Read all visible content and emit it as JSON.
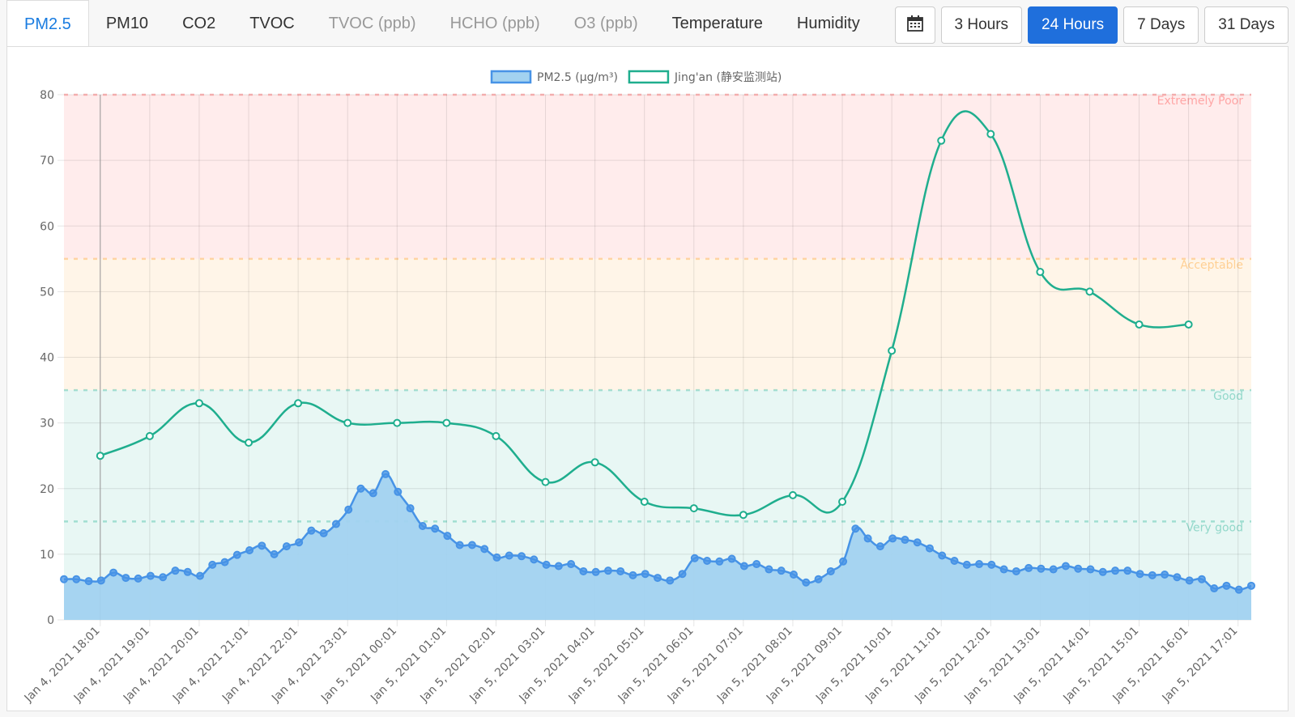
{
  "tabs": [
    {
      "label": "PM2.5",
      "state": "active"
    },
    {
      "label": "PM10",
      "state": "normal"
    },
    {
      "label": "CO2",
      "state": "normal"
    },
    {
      "label": "TVOC",
      "state": "normal"
    },
    {
      "label": "TVOC (ppb)",
      "state": "disabled"
    },
    {
      "label": "HCHO (ppb)",
      "state": "disabled"
    },
    {
      "label": "O3 (ppb)",
      "state": "disabled"
    },
    {
      "label": "Temperature",
      "state": "normal"
    },
    {
      "label": "Humidity",
      "state": "normal"
    }
  ],
  "ranges": [
    {
      "label": "3 Hours",
      "state": "normal"
    },
    {
      "label": "24 Hours",
      "state": "active"
    },
    {
      "label": "7 Days",
      "state": "normal"
    },
    {
      "label": "31 Days",
      "state": "normal"
    }
  ],
  "chart_data": {
    "type": "line",
    "xlim": [
      "Jan 4, 2021 17:17",
      "Jan 5, 2021 17:17"
    ],
    "xticks": [
      "Jan 4, 2021 18:01",
      "Jan 4, 2021 19:01",
      "Jan 4, 2021 20:01",
      "Jan 4, 2021 21:01",
      "Jan 4, 2021 22:01",
      "Jan 4, 2021 23:01",
      "Jan 5, 2021 00:01",
      "Jan 5, 2021 01:01",
      "Jan 5, 2021 02:01",
      "Jan 5, 2021 03:01",
      "Jan 5, 2021 04:01",
      "Jan 5, 2021 05:01",
      "Jan 5, 2021 06:01",
      "Jan 5, 2021 07:01",
      "Jan 5, 2021 08:01",
      "Jan 5, 2021 09:01",
      "Jan 5, 2021 10:01",
      "Jan 5, 2021 11:01",
      "Jan 5, 2021 12:01",
      "Jan 5, 2021 13:01",
      "Jan 5, 2021 14:01",
      "Jan 5, 2021 15:01",
      "Jan 5, 2021 16:01",
      "Jan 5, 2021 17:01"
    ],
    "ylim": [
      0,
      80
    ],
    "yticks": [
      0,
      10,
      20,
      30,
      40,
      50,
      60,
      70,
      80
    ],
    "grid": true,
    "bands": [
      {
        "label": "Extremely Poor",
        "from": 55,
        "to": 80,
        "color": "#ff6b6b"
      },
      {
        "label": "Acceptable",
        "from": 35,
        "to": 55,
        "color": "#ffb14e"
      },
      {
        "label": "Good",
        "from": 15,
        "to": 35,
        "color": "#4bc0a8"
      },
      {
        "label": "Very good",
        "from": 0,
        "to": 15,
        "color": "#4bc0a8"
      }
    ],
    "series": [
      {
        "name": "PM2.5 (μg/m³)",
        "color": "#4793e6",
        "fill": "#a2d2f0",
        "area": true,
        "x": [
          "Jan 4, 2021 17:17",
          "Jan 4, 2021 17:32",
          "Jan 4, 2021 17:47",
          "Jan 4, 2021 18:02",
          "Jan 4, 2021 18:17",
          "Jan 4, 2021 18:32",
          "Jan 4, 2021 18:47",
          "Jan 4, 2021 19:02",
          "Jan 4, 2021 19:17",
          "Jan 4, 2021 19:32",
          "Jan 4, 2021 19:47",
          "Jan 4, 2021 20:02",
          "Jan 4, 2021 20:17",
          "Jan 4, 2021 20:32",
          "Jan 4, 2021 20:47",
          "Jan 4, 2021 21:02",
          "Jan 4, 2021 21:17",
          "Jan 4, 2021 21:32",
          "Jan 4, 2021 21:47",
          "Jan 4, 2021 22:02",
          "Jan 4, 2021 22:17",
          "Jan 4, 2021 22:32",
          "Jan 4, 2021 22:47",
          "Jan 4, 2021 23:02",
          "Jan 4, 2021 23:17",
          "Jan 4, 2021 23:32",
          "Jan 4, 2021 23:47",
          "Jan 5, 2021 00:02",
          "Jan 5, 2021 00:17",
          "Jan 5, 2021 00:32",
          "Jan 5, 2021 00:47",
          "Jan 5, 2021 01:02",
          "Jan 5, 2021 01:17",
          "Jan 5, 2021 01:32",
          "Jan 5, 2021 01:47",
          "Jan 5, 2021 02:02",
          "Jan 5, 2021 02:17",
          "Jan 5, 2021 02:32",
          "Jan 5, 2021 02:47",
          "Jan 5, 2021 03:02",
          "Jan 5, 2021 03:17",
          "Jan 5, 2021 03:32",
          "Jan 5, 2021 03:47",
          "Jan 5, 2021 04:02",
          "Jan 5, 2021 04:17",
          "Jan 5, 2021 04:32",
          "Jan 5, 2021 04:47",
          "Jan 5, 2021 05:02",
          "Jan 5, 2021 05:17",
          "Jan 5, 2021 05:32",
          "Jan 5, 2021 05:47",
          "Jan 5, 2021 06:02",
          "Jan 5, 2021 06:17",
          "Jan 5, 2021 06:32",
          "Jan 5, 2021 06:47",
          "Jan 5, 2021 07:02",
          "Jan 5, 2021 07:17",
          "Jan 5, 2021 07:32",
          "Jan 5, 2021 07:47",
          "Jan 5, 2021 08:02",
          "Jan 5, 2021 08:17",
          "Jan 5, 2021 08:32",
          "Jan 5, 2021 08:47",
          "Jan 5, 2021 09:02",
          "Jan 5, 2021 09:17",
          "Jan 5, 2021 09:32",
          "Jan 5, 2021 09:47",
          "Jan 5, 2021 10:02",
          "Jan 5, 2021 10:17",
          "Jan 5, 2021 10:32",
          "Jan 5, 2021 10:47",
          "Jan 5, 2021 11:02",
          "Jan 5, 2021 11:17",
          "Jan 5, 2021 11:32",
          "Jan 5, 2021 11:47",
          "Jan 5, 2021 12:02",
          "Jan 5, 2021 12:17",
          "Jan 5, 2021 12:32",
          "Jan 5, 2021 12:47",
          "Jan 5, 2021 13:02",
          "Jan 5, 2021 13:17",
          "Jan 5, 2021 13:32",
          "Jan 5, 2021 13:47",
          "Jan 5, 2021 14:02",
          "Jan 5, 2021 14:17",
          "Jan 5, 2021 14:32",
          "Jan 5, 2021 14:47",
          "Jan 5, 2021 15:02",
          "Jan 5, 2021 15:17",
          "Jan 5, 2021 15:32",
          "Jan 5, 2021 15:47",
          "Jan 5, 2021 16:02",
          "Jan 5, 2021 16:17",
          "Jan 5, 2021 16:32",
          "Jan 5, 2021 16:47",
          "Jan 5, 2021 17:02",
          "Jan 5, 2021 17:17"
        ],
        "values": [
          6.2,
          6.2,
          5.9,
          6.0,
          7.2,
          6.4,
          6.3,
          6.7,
          6.5,
          7.5,
          7.3,
          6.7,
          8.4,
          8.8,
          9.9,
          10.6,
          11.3,
          10.0,
          11.2,
          11.8,
          13.6,
          13.2,
          14.6,
          16.8,
          20.0,
          19.3,
          22.2,
          19.5,
          17.0,
          14.3,
          13.9,
          12.8,
          11.4,
          11.4,
          10.8,
          9.5,
          9.8,
          9.7,
          9.2,
          8.4,
          8.2,
          8.5,
          7.4,
          7.3,
          7.5,
          7.4,
          6.8,
          7.0,
          6.4,
          6.0,
          7.0,
          9.4,
          9.0,
          8.9,
          9.3,
          8.2,
          8.5,
          7.7,
          7.5,
          6.9,
          5.7,
          6.2,
          7.4,
          8.9,
          13.9,
          12.4,
          11.2,
          12.4,
          12.2,
          11.8,
          10.9,
          9.8,
          9.0,
          8.4,
          8.5,
          8.4,
          7.7,
          7.4,
          7.9,
          7.8,
          7.7,
          8.2,
          7.8,
          7.7,
          7.3,
          7.5,
          7.5,
          7.0,
          6.8,
          6.9,
          6.5,
          6.0,
          6.2,
          4.8,
          5.2,
          4.6,
          5.2
        ]
      },
      {
        "name": "Jing'an (静安监测站)",
        "color": "#1fae8e",
        "fill": "#ffffff",
        "area": false,
        "x": [
          "Jan 4, 2021 18:01",
          "Jan 4, 2021 19:01",
          "Jan 4, 2021 20:01",
          "Jan 4, 2021 21:01",
          "Jan 4, 2021 22:01",
          "Jan 4, 2021 23:01",
          "Jan 5, 2021 00:01",
          "Jan 5, 2021 01:01",
          "Jan 5, 2021 02:01",
          "Jan 5, 2021 03:01",
          "Jan 5, 2021 04:01",
          "Jan 5, 2021 05:01",
          "Jan 5, 2021 06:01",
          "Jan 5, 2021 07:01",
          "Jan 5, 2021 08:01",
          "Jan 5, 2021 09:01",
          "Jan 5, 2021 10:01",
          "Jan 5, 2021 11:01",
          "Jan 5, 2021 12:01",
          "Jan 5, 2021 13:01",
          "Jan 5, 2021 14:01",
          "Jan 5, 2021 15:01",
          "Jan 5, 2021 16:01"
        ],
        "values": [
          25,
          28,
          33,
          27,
          33,
          30,
          30,
          30,
          28,
          21,
          24,
          18,
          17,
          16,
          19,
          18,
          41,
          73,
          74,
          53,
          50,
          45,
          45
        ]
      }
    ]
  }
}
